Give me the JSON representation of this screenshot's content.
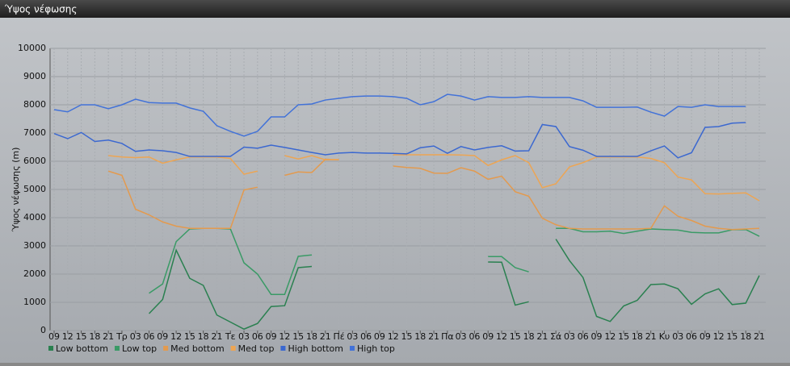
{
  "chart_data": {
    "type": "line",
    "title": "Ύψος νέφωσης",
    "y_label": "Ύψος νέφωσης (m)",
    "categories": [
      "09",
      "12",
      "15",
      "18",
      "21",
      "Τρ",
      "03",
      "06",
      "09",
      "12",
      "15",
      "18",
      "21",
      "Τε",
      "03",
      "06",
      "09",
      "12",
      "15",
      "18",
      "21",
      "Πέ",
      "03",
      "06",
      "09",
      "12",
      "15",
      "18",
      "21",
      "Πα",
      "03",
      "06",
      "09",
      "12",
      "15",
      "18",
      "21",
      "Σά",
      "03",
      "06",
      "09",
      "12",
      "15",
      "18",
      "21",
      "Κυ",
      "03",
      "06",
      "09",
      "12",
      "15",
      "18",
      "21"
    ],
    "ylim": [
      0,
      10000
    ],
    "yticks": [
      0,
      1000,
      2000,
      3000,
      4000,
      5000,
      6000,
      7000,
      8000,
      9000,
      10000
    ],
    "grid": true,
    "series": [
      {
        "name": "Low bottom",
        "color": "#2a8050",
        "values": [
          null,
          null,
          null,
          null,
          null,
          null,
          null,
          600,
          1100,
          2850,
          1850,
          1600,
          550,
          300,
          50,
          250,
          850,
          880,
          2230,
          2270,
          null,
          null,
          null,
          null,
          null,
          null,
          null,
          null,
          null,
          null,
          null,
          null,
          2430,
          2420,
          900,
          1020,
          null,
          3240,
          2480,
          1880,
          500,
          320,
          870,
          1070,
          1630,
          1650,
          1480,
          930,
          1300,
          1480,
          920,
          970,
          1950
        ]
      },
      {
        "name": "Low top",
        "color": "#3a9a66",
        "values": [
          null,
          null,
          null,
          null,
          null,
          null,
          null,
          1320,
          1650,
          3150,
          3600,
          3620,
          3620,
          3600,
          2400,
          2000,
          1280,
          1280,
          2630,
          2680,
          null,
          null,
          null,
          null,
          null,
          null,
          null,
          null,
          null,
          null,
          null,
          null,
          2620,
          2620,
          2230,
          2080,
          null,
          3620,
          3620,
          3500,
          3500,
          3520,
          3440,
          3520,
          3600,
          3580,
          3560,
          3480,
          3460,
          3460,
          3570,
          3580,
          3340
        ]
      },
      {
        "name": "Med bottom",
        "color": "#e39a4e",
        "values": [
          null,
          null,
          null,
          null,
          5650,
          5500,
          4300,
          4100,
          3850,
          3700,
          3620,
          3620,
          3620,
          3620,
          4980,
          5080,
          null,
          5500,
          5620,
          5600,
          6070,
          6050,
          null,
          null,
          null,
          5830,
          5780,
          5750,
          5580,
          5570,
          5770,
          5650,
          5360,
          5470,
          4920,
          4760,
          3980,
          3750,
          3620,
          3600,
          3600,
          3600,
          3600,
          3600,
          3620,
          4420,
          4050,
          3900,
          3700,
          3620,
          3580,
          3600,
          3620
        ]
      },
      {
        "name": "Med top",
        "color": "#eda553",
        "values": [
          null,
          null,
          null,
          null,
          6200,
          6150,
          6130,
          6150,
          5930,
          6050,
          6150,
          6150,
          6150,
          6100,
          5540,
          5650,
          null,
          6200,
          6080,
          6200,
          6050,
          6060,
          null,
          null,
          null,
          6230,
          6230,
          6230,
          6230,
          6230,
          6220,
          6200,
          5850,
          6050,
          6200,
          5950,
          5060,
          5200,
          5800,
          5950,
          6150,
          6150,
          6150,
          6150,
          6100,
          5950,
          5440,
          5340,
          4850,
          4840,
          4860,
          4880,
          4600
        ]
      },
      {
        "name": "High bottom",
        "color": "#3b68d0",
        "values": [
          6980,
          6800,
          7020,
          6700,
          6750,
          6630,
          6350,
          6400,
          6370,
          6310,
          6170,
          6170,
          6170,
          6170,
          6500,
          6460,
          6570,
          6490,
          6400,
          6310,
          6230,
          6290,
          6310,
          6290,
          6290,
          6280,
          6260,
          6480,
          6540,
          6280,
          6520,
          6400,
          6490,
          6550,
          6360,
          6370,
          7300,
          7230,
          6520,
          6390,
          6170,
          6170,
          6170,
          6170,
          6370,
          6540,
          6120,
          6300,
          7200,
          7230,
          7350,
          7370,
          null
        ]
      },
      {
        "name": "High top",
        "color": "#4272d8",
        "values": [
          7830,
          7750,
          8000,
          8000,
          7860,
          8000,
          8200,
          8080,
          8060,
          8060,
          7890,
          7770,
          7260,
          7060,
          6890,
          7060,
          7570,
          7570,
          8000,
          8030,
          8170,
          8230,
          8290,
          8310,
          8310,
          8290,
          8230,
          8000,
          8110,
          8370,
          8310,
          8170,
          8290,
          8260,
          8260,
          8290,
          8260,
          8260,
          8260,
          8140,
          7910,
          7910,
          7910,
          7920,
          7740,
          7600,
          7940,
          7910,
          8000,
          7940,
          7940,
          7940,
          null
        ]
      }
    ]
  }
}
